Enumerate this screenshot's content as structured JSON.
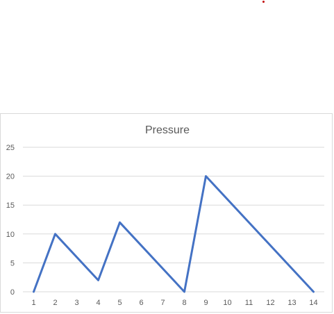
{
  "chart_data": {
    "type": "line",
    "title": "Pressure",
    "xlabel": "",
    "ylabel": "",
    "categories": [
      "1",
      "2",
      "3",
      "4",
      "5",
      "6",
      "7",
      "8",
      "9",
      "10",
      "11",
      "12",
      "13",
      "14"
    ],
    "series": [
      {
        "x": [
          1,
          2,
          4,
          5,
          8,
          9,
          14
        ],
        "values": [
          0,
          10,
          2,
          12,
          0,
          20,
          0
        ]
      }
    ],
    "y_ticks": [
      "0",
      "5",
      "10",
      "15",
      "20",
      "25"
    ],
    "ylim": [
      0,
      25
    ],
    "grid": true,
    "legend": "none",
    "colors": {
      "line": "#4472c4",
      "grid": "#d9d9d9",
      "text": "#595959"
    }
  }
}
